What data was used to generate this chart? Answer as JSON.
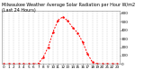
{
  "title": "Milwaukee Weather Average Solar Radiation per Hour W/m2 (Last 24 Hours)",
  "hours": [
    0,
    1,
    2,
    3,
    4,
    5,
    6,
    7,
    8,
    9,
    10,
    11,
    12,
    13,
    14,
    15,
    16,
    17,
    18,
    19,
    20,
    21,
    22,
    23
  ],
  "values": [
    0,
    0,
    0,
    0,
    0,
    0,
    0,
    5,
    80,
    200,
    380,
    520,
    560,
    510,
    430,
    370,
    260,
    120,
    20,
    2,
    0,
    0,
    0,
    0
  ],
  "line_color": "#ff0000",
  "bg_color": "#ffffff",
  "plot_bg": "#ffffff",
  "grid_color": "#b0b0b0",
  "ylabel_values": [
    0,
    100,
    200,
    300,
    400,
    500,
    600
  ],
  "ylim": [
    0,
    630
  ],
  "xlim": [
    -0.5,
    23.5
  ],
  "tick_fontsize": 3.0,
  "title_fontsize": 3.5
}
